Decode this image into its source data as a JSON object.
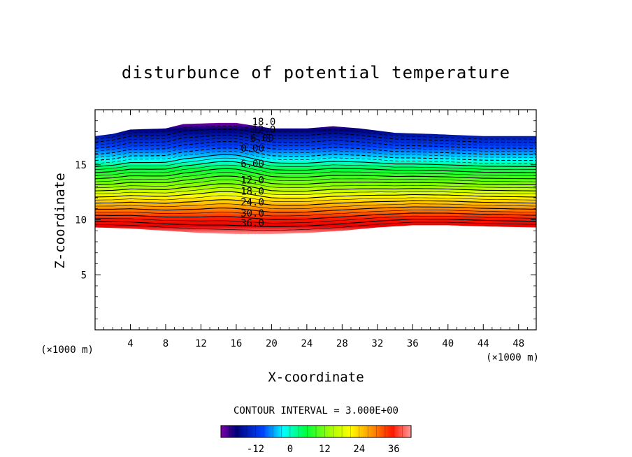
{
  "chart_data": {
    "type": "contour",
    "title": "disturbunce of potential temperature",
    "xlabel": "X-coordinate",
    "ylabel": "Z-coordinate",
    "x_unit": "(×1000 m)",
    "z_unit": "(×1000 m)",
    "xlim": [
      0,
      50
    ],
    "ylim": [
      0,
      20
    ],
    "x_ticks": [
      "4",
      "8",
      "12",
      "16",
      "20",
      "24",
      "28",
      "32",
      "36",
      "40",
      "44",
      "48"
    ],
    "y_ticks": [
      "5",
      "10",
      "15"
    ],
    "contour_interval": "CONTOUR INTERVAL = 3.000E+00",
    "contour_labels": [
      "18.0",
      "12.0",
      "6.00",
      "0.00",
      "6.00",
      "12.0",
      "18.0",
      "24.0",
      "30.0",
      "36.0"
    ],
    "colorbar": {
      "ticks": [
        "-12",
        "0",
        "12",
        "24",
        "36"
      ],
      "range": [
        -24,
        42
      ]
    },
    "field_extent": {
      "x": [
        0,
        50
      ],
      "top_boundary_z": [
        [
          0,
          17.6
        ],
        [
          2,
          17.8
        ],
        [
          4,
          18.2
        ],
        [
          8,
          18.3
        ],
        [
          10,
          18.7
        ],
        [
          14,
          18.8
        ],
        [
          16,
          18.8
        ],
        [
          20,
          18.3
        ],
        [
          24,
          18.3
        ],
        [
          27,
          18.5
        ],
        [
          30,
          18.3
        ],
        [
          34,
          17.9
        ],
        [
          38,
          17.8
        ],
        [
          44,
          17.6
        ],
        [
          50,
          17.6
        ]
      ],
      "bottom_boundary_z": [
        [
          0,
          9.3
        ],
        [
          4,
          9.2
        ],
        [
          8,
          9.0
        ],
        [
          12,
          8.8
        ],
        [
          16,
          8.7
        ],
        [
          20,
          8.7
        ],
        [
          24,
          8.8
        ],
        [
          28,
          9.0
        ],
        [
          32,
          9.3
        ],
        [
          36,
          9.5
        ],
        [
          40,
          9.5
        ],
        [
          44,
          9.4
        ],
        [
          50,
          9.3
        ]
      ]
    },
    "colors": {
      "purple": "#7f00a8",
      "navy": "#00007a",
      "blue": "#0033ff",
      "cyan": "#00ffff",
      "green": "#00ff3a",
      "yellow": "#ffff00",
      "orange": "#ff8a00",
      "red": "#ff1a00",
      "pink": "#ff9a9a"
    }
  }
}
